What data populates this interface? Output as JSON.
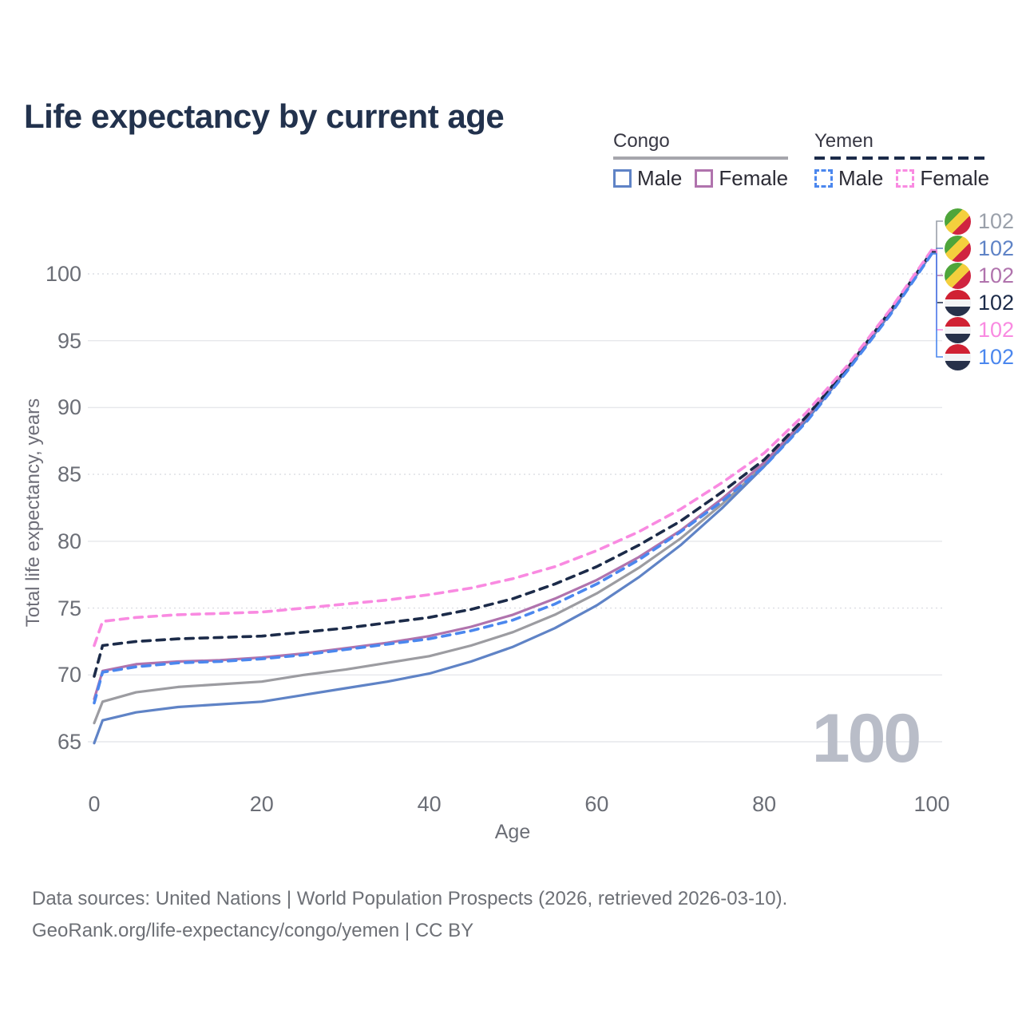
{
  "page": {
    "title": "Life expectancy by current age"
  },
  "legend": {
    "groups": [
      {
        "country": "Congo",
        "line_style": "solid",
        "line_color": "#9c9ca1",
        "items": [
          {
            "label": "Male",
            "color": "#5f83c6"
          },
          {
            "label": "Female",
            "color": "#b073ad"
          }
        ]
      },
      {
        "country": "Yemen",
        "line_style": "dashed",
        "line_color": "#1c2b49",
        "items": [
          {
            "label": "Male",
            "color": "#4b87ee"
          },
          {
            "label": "Female",
            "color": "#f98ae1"
          }
        ]
      }
    ]
  },
  "axes": {
    "x": {
      "label": "Age",
      "ticks": [
        0,
        20,
        40,
        60,
        80,
        100
      ]
    },
    "y": {
      "label": "Total life expectancy, years",
      "ticks": [
        65,
        70,
        75,
        80,
        85,
        90,
        95,
        100
      ],
      "dotted_ticks": [
        100,
        85,
        75
      ]
    }
  },
  "watermark": "100",
  "end_labels": [
    {
      "flag": "congo",
      "value": "102",
      "color": "#9aa0aa",
      "series": "Congo Both sexes"
    },
    {
      "flag": "congo",
      "value": "102",
      "color": "#5f83c6",
      "series": "Congo Male"
    },
    {
      "flag": "congo",
      "value": "102",
      "color": "#b073ad",
      "series": "Congo Female"
    },
    {
      "flag": "yemen",
      "value": "102",
      "color": "#1c2b49",
      "series": "Yemen Both sexes"
    },
    {
      "flag": "yemen",
      "value": "102",
      "color": "#f98ae1",
      "series": "Yemen Female"
    },
    {
      "flag": "yemen",
      "value": "102",
      "color": "#4b87ee",
      "series": "Yemen Male"
    }
  ],
  "footer": {
    "line1": "Data sources: United Nations | World Population Prospects (2026, retrieved 2026-03-10).",
    "line2": "GeoRank.org/life-expectancy/congo/yemen | CC BY"
  },
  "chart_data": {
    "type": "line",
    "title": "Life expectancy by current age",
    "xlabel": "Age",
    "ylabel": "Total life expectancy, years",
    "xlim": [
      0,
      100
    ],
    "ylim": [
      63.5,
      103.5
    ],
    "grid": "horizontal",
    "legend_position": "top-right",
    "end_value_label": "102",
    "x": [
      0,
      1,
      5,
      10,
      15,
      20,
      25,
      30,
      35,
      40,
      45,
      50,
      55,
      60,
      65,
      70,
      75,
      80,
      85,
      90,
      95,
      100
    ],
    "series": [
      {
        "name": "Congo Both sexes",
        "country": "Congo",
        "sex": "both",
        "color": "#9c9ca1",
        "dash": false,
        "values": [
          66.4,
          68.0,
          68.7,
          69.1,
          69.3,
          69.5,
          70.0,
          70.4,
          70.9,
          71.4,
          72.2,
          73.2,
          74.5,
          76.1,
          78.0,
          80.2,
          82.8,
          85.7,
          89.1,
          92.9,
          97.1,
          101.6
        ]
      },
      {
        "name": "Congo Male",
        "country": "Congo",
        "sex": "male",
        "color": "#5f83c6",
        "dash": false,
        "values": [
          64.9,
          66.6,
          67.2,
          67.6,
          67.8,
          68.0,
          68.5,
          69.0,
          69.5,
          70.1,
          71.0,
          72.1,
          73.5,
          75.2,
          77.3,
          79.7,
          82.5,
          85.6,
          89.0,
          92.9,
          97.0,
          101.55
        ]
      },
      {
        "name": "Congo Female",
        "country": "Congo",
        "sex": "female",
        "color": "#b073ad",
        "dash": false,
        "values": [
          68.2,
          70.3,
          70.8,
          71.0,
          71.1,
          71.3,
          71.6,
          72.0,
          72.4,
          72.9,
          73.6,
          74.5,
          75.7,
          77.1,
          78.8,
          80.8,
          83.2,
          85.9,
          89.2,
          93.0,
          97.2,
          101.7
        ]
      },
      {
        "name": "Yemen Both sexes",
        "country": "Yemen",
        "sex": "both",
        "color": "#1c2b49",
        "dash": true,
        "values": [
          69.9,
          72.2,
          72.5,
          72.7,
          72.8,
          72.9,
          73.2,
          73.5,
          73.9,
          74.3,
          74.9,
          75.7,
          76.8,
          78.1,
          79.7,
          81.5,
          83.7,
          86.1,
          89.3,
          93.0,
          97.2,
          101.65
        ]
      },
      {
        "name": "Yemen Female",
        "country": "Yemen",
        "sex": "female",
        "color": "#f98ae1",
        "dash": true,
        "values": [
          72.2,
          74.0,
          74.3,
          74.5,
          74.6,
          74.7,
          75.0,
          75.3,
          75.6,
          76.0,
          76.5,
          77.2,
          78.1,
          79.3,
          80.7,
          82.4,
          84.4,
          86.6,
          89.6,
          93.2,
          97.3,
          101.8
        ]
      },
      {
        "name": "Yemen Male",
        "country": "Yemen",
        "sex": "male",
        "color": "#4b87ee",
        "dash": true,
        "values": [
          67.9,
          70.2,
          70.6,
          70.9,
          71.0,
          71.2,
          71.5,
          71.9,
          72.3,
          72.7,
          73.3,
          74.1,
          75.3,
          76.8,
          78.6,
          80.7,
          83.0,
          85.6,
          88.9,
          92.8,
          96.9,
          101.5
        ]
      }
    ]
  }
}
